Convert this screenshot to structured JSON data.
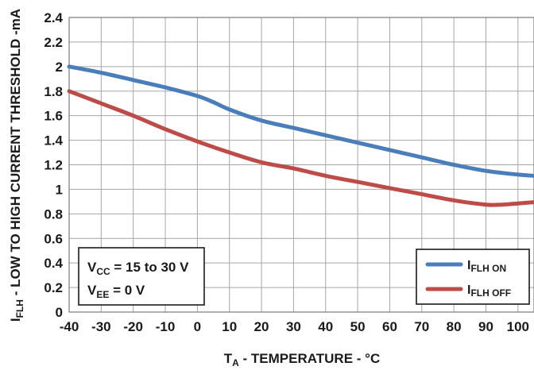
{
  "chart_data": {
    "type": "line",
    "xlabel": {
      "main": "T",
      "sub": "A",
      "rest": " - TEMPERATURE - °C"
    },
    "ylabel": {
      "main": "I",
      "sub": "FLH",
      "rest": " - LOW TO HIGH CURRENT THRESHOLD -mA"
    },
    "xlim": [
      -40,
      105
    ],
    "ylim": [
      0,
      2.4
    ],
    "x_ticks": [
      -40,
      -30,
      -20,
      -10,
      0,
      10,
      20,
      30,
      40,
      50,
      60,
      70,
      80,
      90,
      100
    ],
    "x_tick_labels": [
      "-40",
      "-30",
      "-20",
      "-10",
      "0",
      "10",
      "20",
      "30",
      "40",
      "50",
      "60",
      "70",
      "80",
      "90",
      "100"
    ],
    "y_ticks": [
      0,
      0.2,
      0.4,
      0.6,
      0.8,
      1,
      1.2,
      1.4,
      1.6,
      1.8,
      2,
      2.2,
      2.4
    ],
    "y_tick_labels": [
      "0",
      "0.2",
      "0.4",
      "0.6",
      "0.8",
      "1",
      "1.2",
      "1.4",
      "1.6",
      "1.8",
      "2",
      "2.2",
      "2.4"
    ],
    "grid": true,
    "legend_position": "bottom-right",
    "series": [
      {
        "name": "IFLH ON",
        "label_main": "I",
        "label_sub": "FLH ON",
        "color": "#4a7ebb",
        "x": [
          -40,
          -30,
          -20,
          -10,
          0,
          5,
          10,
          20,
          30,
          40,
          50,
          60,
          70,
          80,
          90,
          100,
          105
        ],
        "y": [
          2.0,
          1.95,
          1.89,
          1.83,
          1.76,
          1.71,
          1.65,
          1.56,
          1.5,
          1.44,
          1.38,
          1.32,
          1.26,
          1.2,
          1.15,
          1.12,
          1.11
        ]
      },
      {
        "name": "IFLH OFF",
        "label_main": "I",
        "label_sub": "FLH OFF",
        "color": "#be4b48",
        "x": [
          -40,
          -30,
          -20,
          -10,
          0,
          10,
          20,
          30,
          40,
          50,
          60,
          70,
          80,
          90,
          95,
          100,
          105
        ],
        "y": [
          1.8,
          1.7,
          1.6,
          1.49,
          1.39,
          1.3,
          1.22,
          1.17,
          1.11,
          1.06,
          1.01,
          0.96,
          0.91,
          0.875,
          0.875,
          0.885,
          0.895
        ]
      }
    ],
    "annotations": {
      "vcc": {
        "main": "V",
        "sub": "CC",
        "rest": " = 15 to 30 V"
      },
      "vee": {
        "main": "V",
        "sub": "EE",
        "rest": " = 0 V"
      }
    }
  }
}
